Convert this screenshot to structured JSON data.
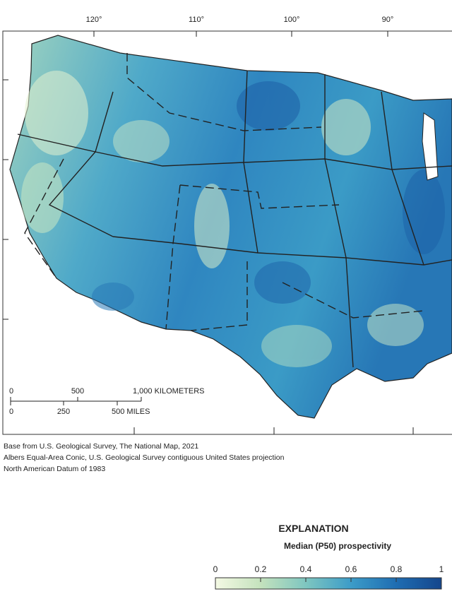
{
  "map": {
    "longitude_labels": [
      "120°",
      "110°",
      "100°",
      "90°"
    ],
    "scale_bar": {
      "km_labels": [
        "0",
        "500",
        "1,000 KILOMETERS"
      ],
      "mile_labels": [
        "0",
        "250",
        "500 MILES"
      ]
    },
    "credits": [
      "Base from U.S. Geological Survey, The National Map, 2021",
      "Albers Equal-Area Conic, U.S. Geological Survey contiguous United States projection",
      "North American Datum of 1983"
    ]
  },
  "legend": {
    "title": "EXPLANATION",
    "subtitle": "Median (P50) prospectivity",
    "range": [
      0,
      1
    ],
    "ticks": [
      0,
      0.2,
      0.4,
      0.6,
      0.8,
      1
    ],
    "colors": [
      "#f4f9e4",
      "#c4e2bd",
      "#7ec6c0",
      "#3c9cc8",
      "#1f6db2",
      "#15468c"
    ]
  }
}
